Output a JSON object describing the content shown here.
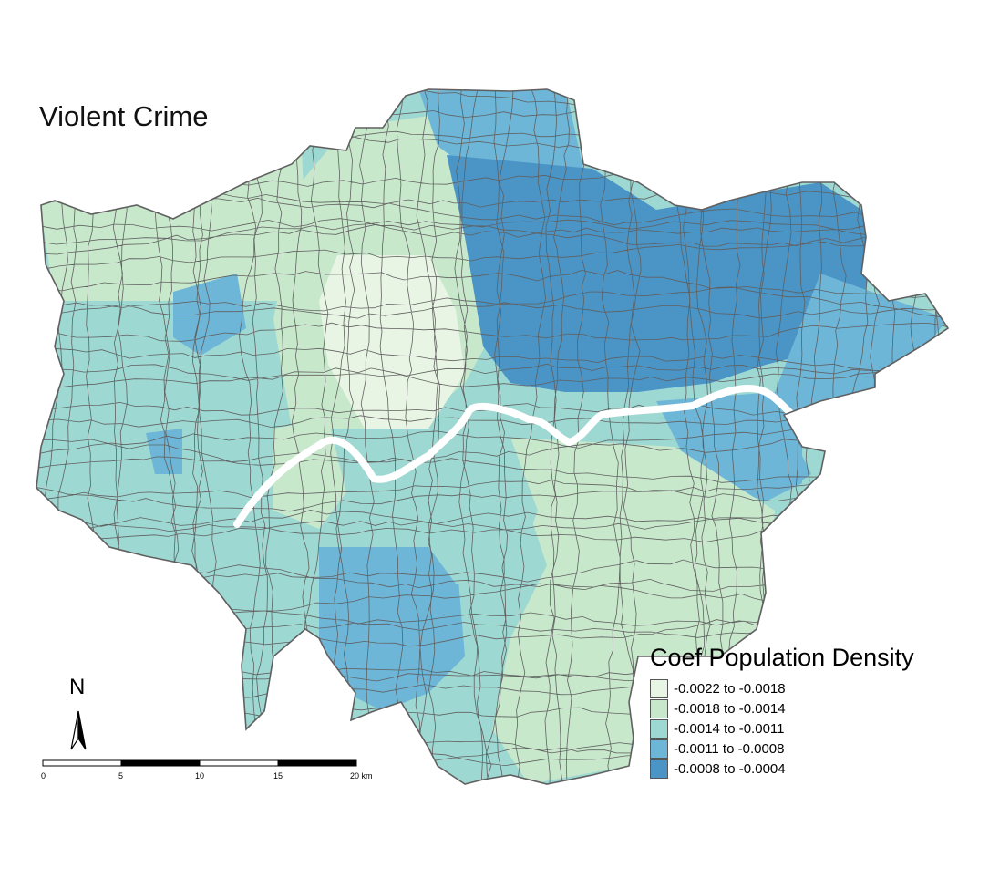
{
  "title": "Violent Crime",
  "north_label": "N",
  "legend": {
    "title": "Coef Population Density",
    "items": [
      {
        "label": "-0.0022 to -0.0018",
        "color": "#e9f5e4"
      },
      {
        "label": "-0.0018 to -0.0014",
        "color": "#c8e8cc"
      },
      {
        "label": "-0.0014 to -0.0011",
        "color": "#9ed8d2"
      },
      {
        "label": "-0.0011 to -0.0008",
        "color": "#6db6d8"
      },
      {
        "label": "-0.0008 to -0.0004",
        "color": "#4a94c6"
      }
    ]
  },
  "scale_bar": {
    "ticks": [
      "0",
      "5",
      "10",
      "15",
      "20 km"
    ]
  },
  "colors": {
    "boundary": "#606060",
    "river": "#ffffff"
  }
}
